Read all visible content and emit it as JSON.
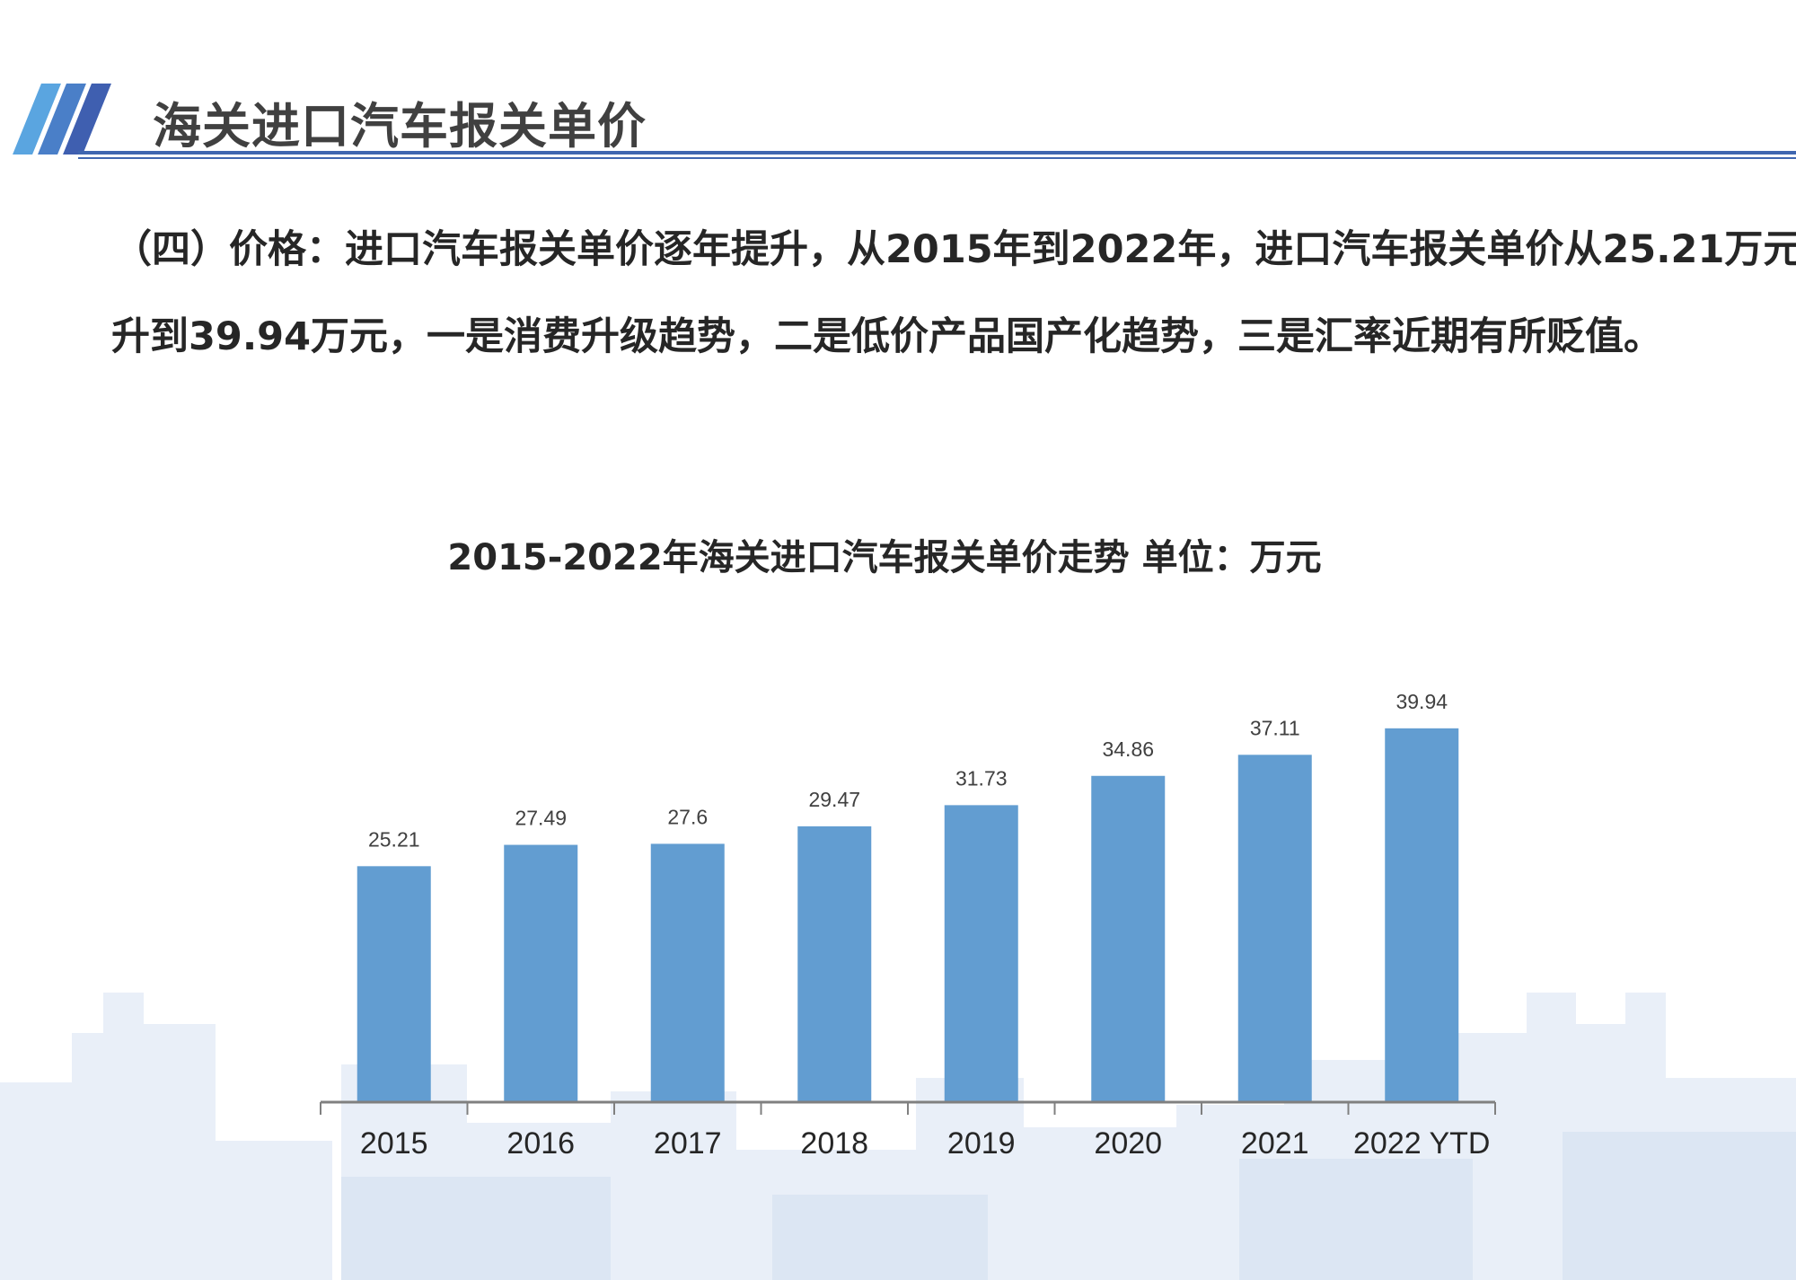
{
  "header": {
    "title": "海关进口汽车报关单价"
  },
  "body_text": [
    "（四）价格：进口汽车报关单价逐年提升，从2015年到2022年，进口汽车报关单价从25.21万元提",
    "升到39.94万元，一是消费升级趋势，二是低价产品国产化趋势，三是汇率近期有所贬值。"
  ],
  "colors": {
    "bar": "#629dd1",
    "accent": "#3f66b0",
    "axis": "#808080"
  },
  "chart_data": {
    "type": "bar",
    "title": "2015-2022年海关进口汽车报关单价走势  单位：万元",
    "categories": [
      "2015",
      "2016",
      "2017",
      "2018",
      "2019",
      "2020",
      "2021",
      "2022 YTD"
    ],
    "values": [
      25.21,
      27.49,
      27.6,
      29.47,
      31.73,
      34.86,
      37.11,
      39.94
    ],
    "data_labels": [
      "25.21",
      "27.49",
      "27.6",
      "29.47",
      "31.73",
      "34.86",
      "37.11",
      "39.94"
    ],
    "xlabel": "",
    "ylabel": "",
    "ylim": [
      0,
      40
    ],
    "grid": false,
    "legend": "none"
  }
}
